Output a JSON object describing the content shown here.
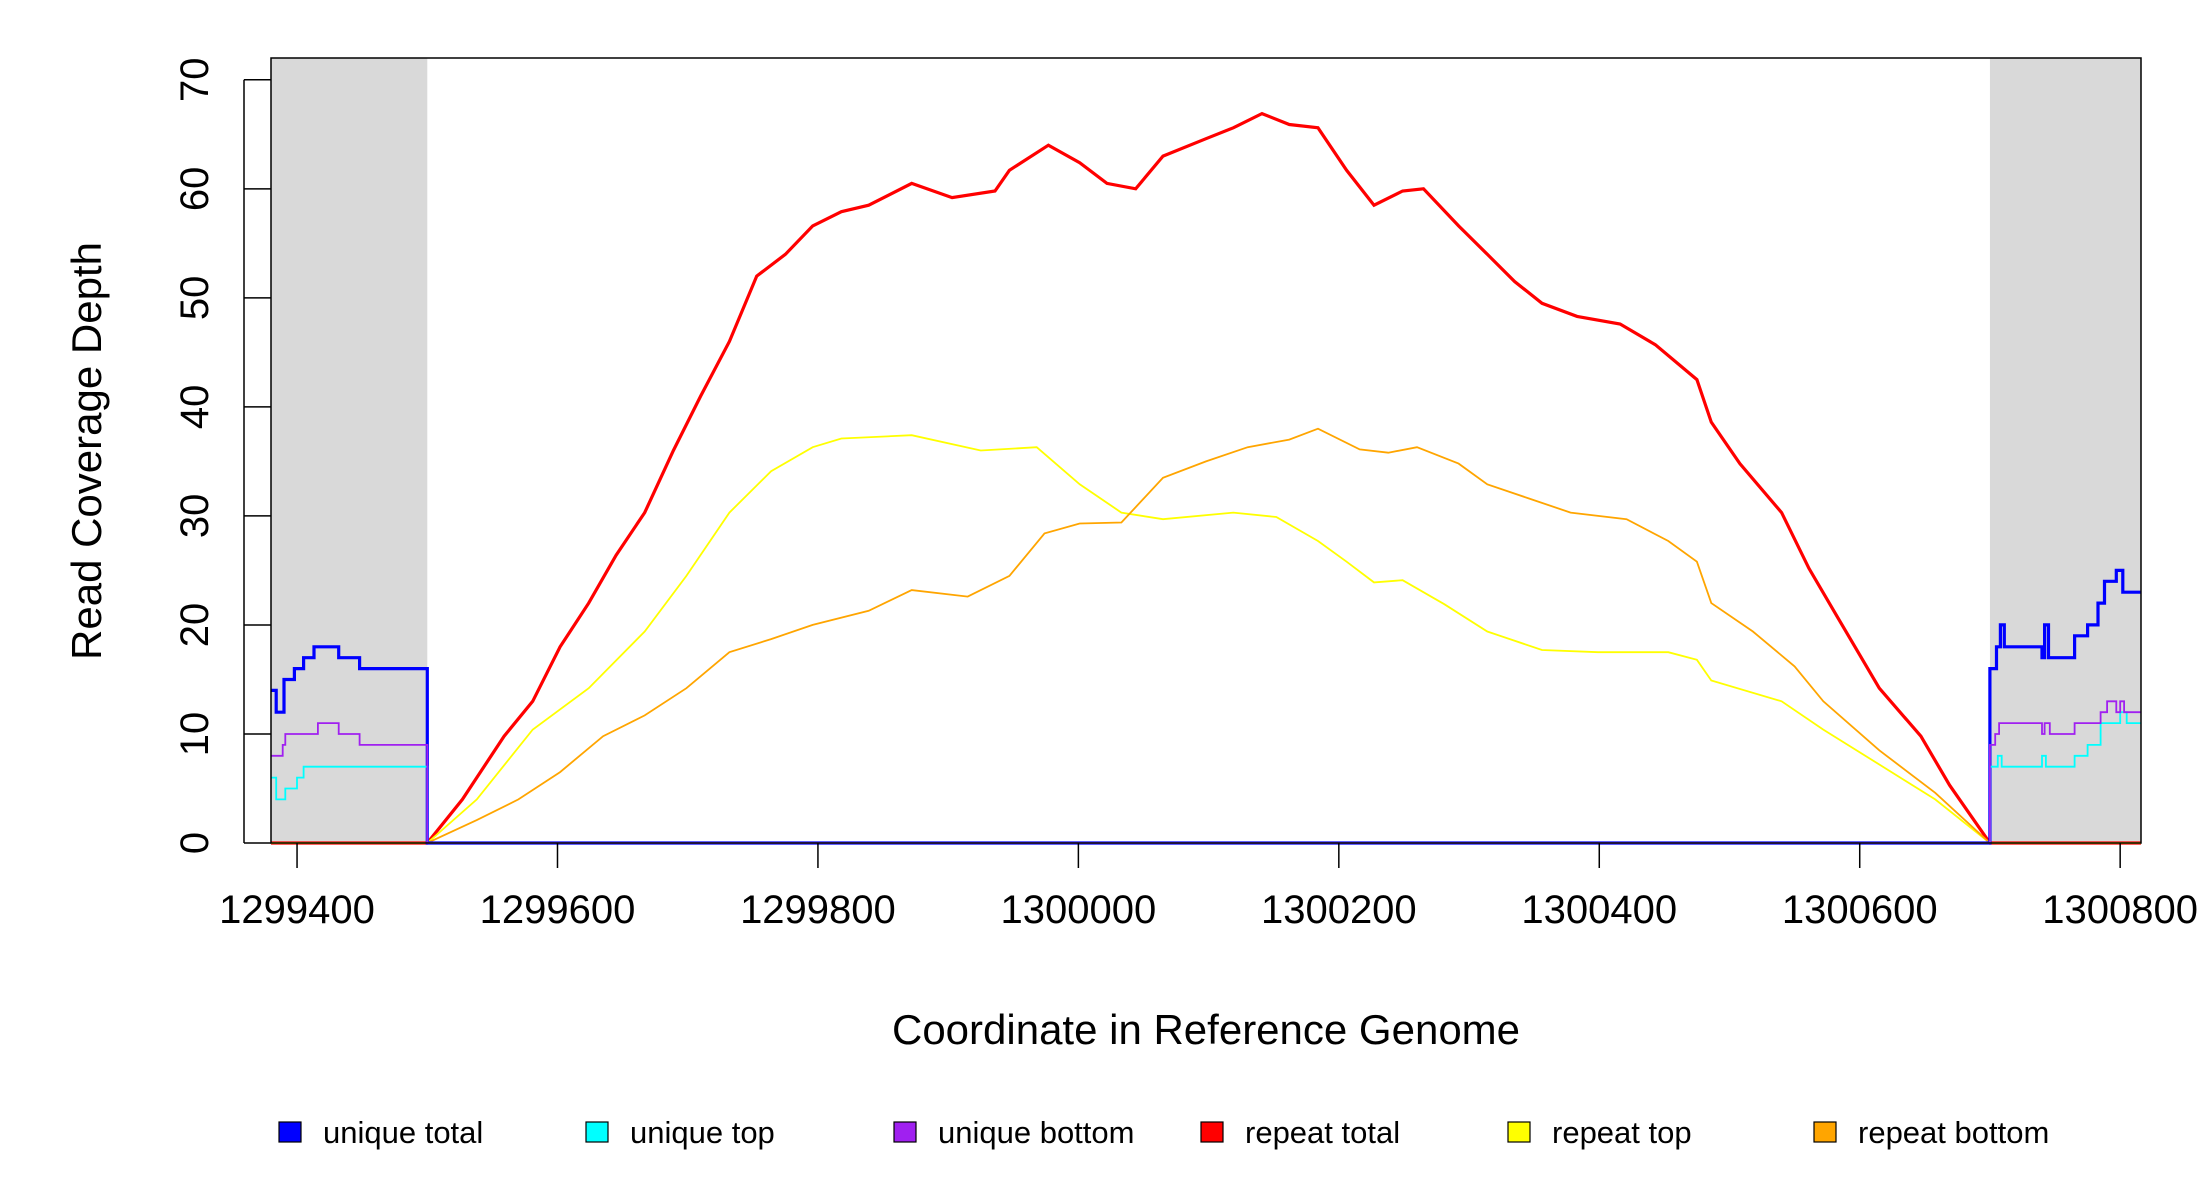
{
  "chart_data": {
    "type": "line",
    "title": "",
    "xlabel": "Coordinate in Reference Genome",
    "ylabel": "Read Coverage Depth",
    "xlim": [
      1299380,
      1300816
    ],
    "ylim": [
      0,
      72
    ],
    "x_ticks": [
      1299400,
      1299600,
      1299800,
      1300000,
      1300200,
      1300400,
      1300600,
      1300800
    ],
    "x_tick_labels": [
      "1299400",
      "1299600",
      "1299800",
      "1300000",
      "1300200",
      "1300400",
      "1300600",
      "1300800"
    ],
    "y_ticks": [
      0,
      10,
      20,
      30,
      40,
      50,
      60,
      70
    ],
    "y_tick_labels": [
      "0",
      "10",
      "20",
      "30",
      "40",
      "50",
      "60",
      "70"
    ],
    "grid": false,
    "legend_placement": "bottom",
    "shaded_regions": [
      {
        "x": [
          1299380,
          1299500
        ],
        "color": "#d9d9d9"
      },
      {
        "x": [
          1300700,
          1300816
        ],
        "color": "#d9d9d9"
      }
    ],
    "series": [
      {
        "name": "unique total",
        "color": "#0000ff",
        "step": true,
        "points": [
          [
            1299380,
            14
          ],
          [
            1299384,
            12
          ],
          [
            1299390,
            15
          ],
          [
            1299398,
            16
          ],
          [
            1299405,
            17
          ],
          [
            1299413,
            18
          ],
          [
            1299432,
            17
          ],
          [
            1299448,
            16
          ],
          [
            1299500,
            16
          ],
          [
            1299500,
            0
          ],
          [
            1300700,
            0
          ],
          [
            1300700,
            16
          ],
          [
            1300705,
            18
          ],
          [
            1300708,
            20
          ],
          [
            1300711,
            18
          ],
          [
            1300740,
            17
          ],
          [
            1300742,
            20
          ],
          [
            1300745,
            17
          ],
          [
            1300765,
            19
          ],
          [
            1300775,
            20
          ],
          [
            1300783,
            22
          ],
          [
            1300788,
            24
          ],
          [
            1300797,
            25
          ],
          [
            1300802,
            23
          ],
          [
            1300816,
            23
          ]
        ]
      },
      {
        "name": "unique top",
        "color": "#00ffff",
        "step": true,
        "points": [
          [
            1299380,
            6
          ],
          [
            1299384,
            4
          ],
          [
            1299391,
            5
          ],
          [
            1299400,
            6
          ],
          [
            1299405,
            7
          ],
          [
            1299500,
            7
          ],
          [
            1299500,
            0
          ],
          [
            1300700,
            0
          ],
          [
            1300700,
            7
          ],
          [
            1300706,
            8
          ],
          [
            1300709,
            7
          ],
          [
            1300740,
            8
          ],
          [
            1300743,
            7
          ],
          [
            1300765,
            8
          ],
          [
            1300775,
            9
          ],
          [
            1300785,
            11
          ],
          [
            1300800,
            12
          ],
          [
            1300805,
            11
          ],
          [
            1300816,
            11
          ]
        ]
      },
      {
        "name": "unique bottom",
        "color": "#a020f0",
        "step": true,
        "points": [
          [
            1299380,
            8
          ],
          [
            1299389,
            9
          ],
          [
            1299391,
            10
          ],
          [
            1299416,
            11
          ],
          [
            1299432,
            10
          ],
          [
            1299448,
            9
          ],
          [
            1299500,
            9
          ],
          [
            1299500,
            0
          ],
          [
            1300700,
            0
          ],
          [
            1300700,
            9
          ],
          [
            1300704,
            10
          ],
          [
            1300707,
            11
          ],
          [
            1300740,
            10
          ],
          [
            1300742,
            11
          ],
          [
            1300746,
            10
          ],
          [
            1300765,
            11
          ],
          [
            1300785,
            12
          ],
          [
            1300790,
            13
          ],
          [
            1300797,
            12
          ],
          [
            1300800,
            13
          ],
          [
            1300803,
            12
          ],
          [
            1300816,
            12
          ]
        ]
      },
      {
        "name": "repeat total",
        "color": "#ff0000",
        "step": false,
        "points": [
          [
            1299380,
            0
          ],
          [
            1299500,
            0
          ],
          [
            1299527,
            4
          ],
          [
            1299559,
            9.8
          ],
          [
            1299581,
            13
          ],
          [
            1299602,
            18
          ],
          [
            1299624,
            22
          ],
          [
            1299645,
            26.4
          ],
          [
            1299667,
            30.3
          ],
          [
            1299689,
            36
          ],
          [
            1299710,
            41
          ],
          [
            1299732,
            46
          ],
          [
            1299753,
            52
          ],
          [
            1299775,
            54
          ],
          [
            1299796,
            56.6
          ],
          [
            1299818,
            57.9
          ],
          [
            1299839,
            58.5
          ],
          [
            1299872,
            60.5
          ],
          [
            1299903,
            59.2
          ],
          [
            1299936,
            59.8
          ],
          [
            1299947,
            61.7
          ],
          [
            1299977,
            64
          ],
          [
            1300001,
            62.4
          ],
          [
            1300022,
            60.5
          ],
          [
            1300044,
            60
          ],
          [
            1300065,
            63
          ],
          [
            1300098,
            64.6
          ],
          [
            1300119,
            65.6
          ],
          [
            1300141,
            66.9
          ],
          [
            1300162,
            65.9
          ],
          [
            1300184,
            65.6
          ],
          [
            1300206,
            61.7
          ],
          [
            1300227,
            58.5
          ],
          [
            1300249,
            59.8
          ],
          [
            1300265,
            60
          ],
          [
            1300292,
            56.6
          ],
          [
            1300314,
            54
          ],
          [
            1300335,
            51.5
          ],
          [
            1300356,
            49.5
          ],
          [
            1300383,
            48.3
          ],
          [
            1300416,
            47.6
          ],
          [
            1300443,
            45.7
          ],
          [
            1300475,
            42.5
          ],
          [
            1300486,
            38.6
          ],
          [
            1300508,
            34.8
          ],
          [
            1300540,
            30.3
          ],
          [
            1300561,
            25.2
          ],
          [
            1300583,
            20.7
          ],
          [
            1300615,
            14.2
          ],
          [
            1300647,
            9.8
          ],
          [
            1300669,
            5.3
          ],
          [
            1300700,
            0
          ],
          [
            1300816,
            0
          ]
        ]
      },
      {
        "name": "repeat top",
        "color": "#ffff00",
        "step": false,
        "points": [
          [
            1299380,
            0
          ],
          [
            1299500,
            0
          ],
          [
            1299538,
            4
          ],
          [
            1299581,
            10.4
          ],
          [
            1299624,
            14.2
          ],
          [
            1299667,
            19.4
          ],
          [
            1299699,
            24.5
          ],
          [
            1299732,
            30.3
          ],
          [
            1299764,
            34.1
          ],
          [
            1299796,
            36.3
          ],
          [
            1299818,
            37.1
          ],
          [
            1299872,
            37.4
          ],
          [
            1299925,
            36
          ],
          [
            1299968,
            36.3
          ],
          [
            1300001,
            32.9
          ],
          [
            1300033,
            30.3
          ],
          [
            1300065,
            29.7
          ],
          [
            1300119,
            30.3
          ],
          [
            1300152,
            29.9
          ],
          [
            1300184,
            27.7
          ],
          [
            1300206,
            25.8
          ],
          [
            1300227,
            23.9
          ],
          [
            1300249,
            24.1
          ],
          [
            1300281,
            21.9
          ],
          [
            1300314,
            19.4
          ],
          [
            1300356,
            17.7
          ],
          [
            1300399,
            17.5
          ],
          [
            1300453,
            17.5
          ],
          [
            1300475,
            16.8
          ],
          [
            1300486,
            14.9
          ],
          [
            1300540,
            13
          ],
          [
            1300572,
            10.4
          ],
          [
            1300615,
            7.2
          ],
          [
            1300658,
            4
          ],
          [
            1300700,
            0
          ],
          [
            1300816,
            0
          ]
        ]
      },
      {
        "name": "repeat bottom",
        "color": "#ffa500",
        "step": false,
        "points": [
          [
            1299380,
            0
          ],
          [
            1299500,
            0
          ],
          [
            1299538,
            2.1
          ],
          [
            1299570,
            4
          ],
          [
            1299602,
            6.5
          ],
          [
            1299635,
            9.8
          ],
          [
            1299667,
            11.7
          ],
          [
            1299699,
            14.2
          ],
          [
            1299732,
            17.5
          ],
          [
            1299764,
            18.7
          ],
          [
            1299796,
            20
          ],
          [
            1299839,
            21.3
          ],
          [
            1299872,
            23.2
          ],
          [
            1299915,
            22.6
          ],
          [
            1299947,
            24.5
          ],
          [
            1299974,
            28.4
          ],
          [
            1300001,
            29.3
          ],
          [
            1300033,
            29.4
          ],
          [
            1300065,
            33.5
          ],
          [
            1300098,
            35
          ],
          [
            1300130,
            36.3
          ],
          [
            1300162,
            37
          ],
          [
            1300184,
            38
          ],
          [
            1300216,
            36.1
          ],
          [
            1300238,
            35.8
          ],
          [
            1300260,
            36.3
          ],
          [
            1300292,
            34.8
          ],
          [
            1300314,
            32.9
          ],
          [
            1300346,
            31.6
          ],
          [
            1300378,
            30.3
          ],
          [
            1300421,
            29.7
          ],
          [
            1300453,
            27.7
          ],
          [
            1300475,
            25.8
          ],
          [
            1300486,
            22
          ],
          [
            1300518,
            19.4
          ],
          [
            1300550,
            16.2
          ],
          [
            1300572,
            13
          ],
          [
            1300615,
            8.5
          ],
          [
            1300658,
            4.6
          ],
          [
            1300700,
            0
          ],
          [
            1300816,
            0
          ]
        ]
      }
    ],
    "legend": [
      "unique total",
      "unique top",
      "unique bottom",
      "repeat total",
      "repeat top",
      "repeat bottom"
    ]
  }
}
